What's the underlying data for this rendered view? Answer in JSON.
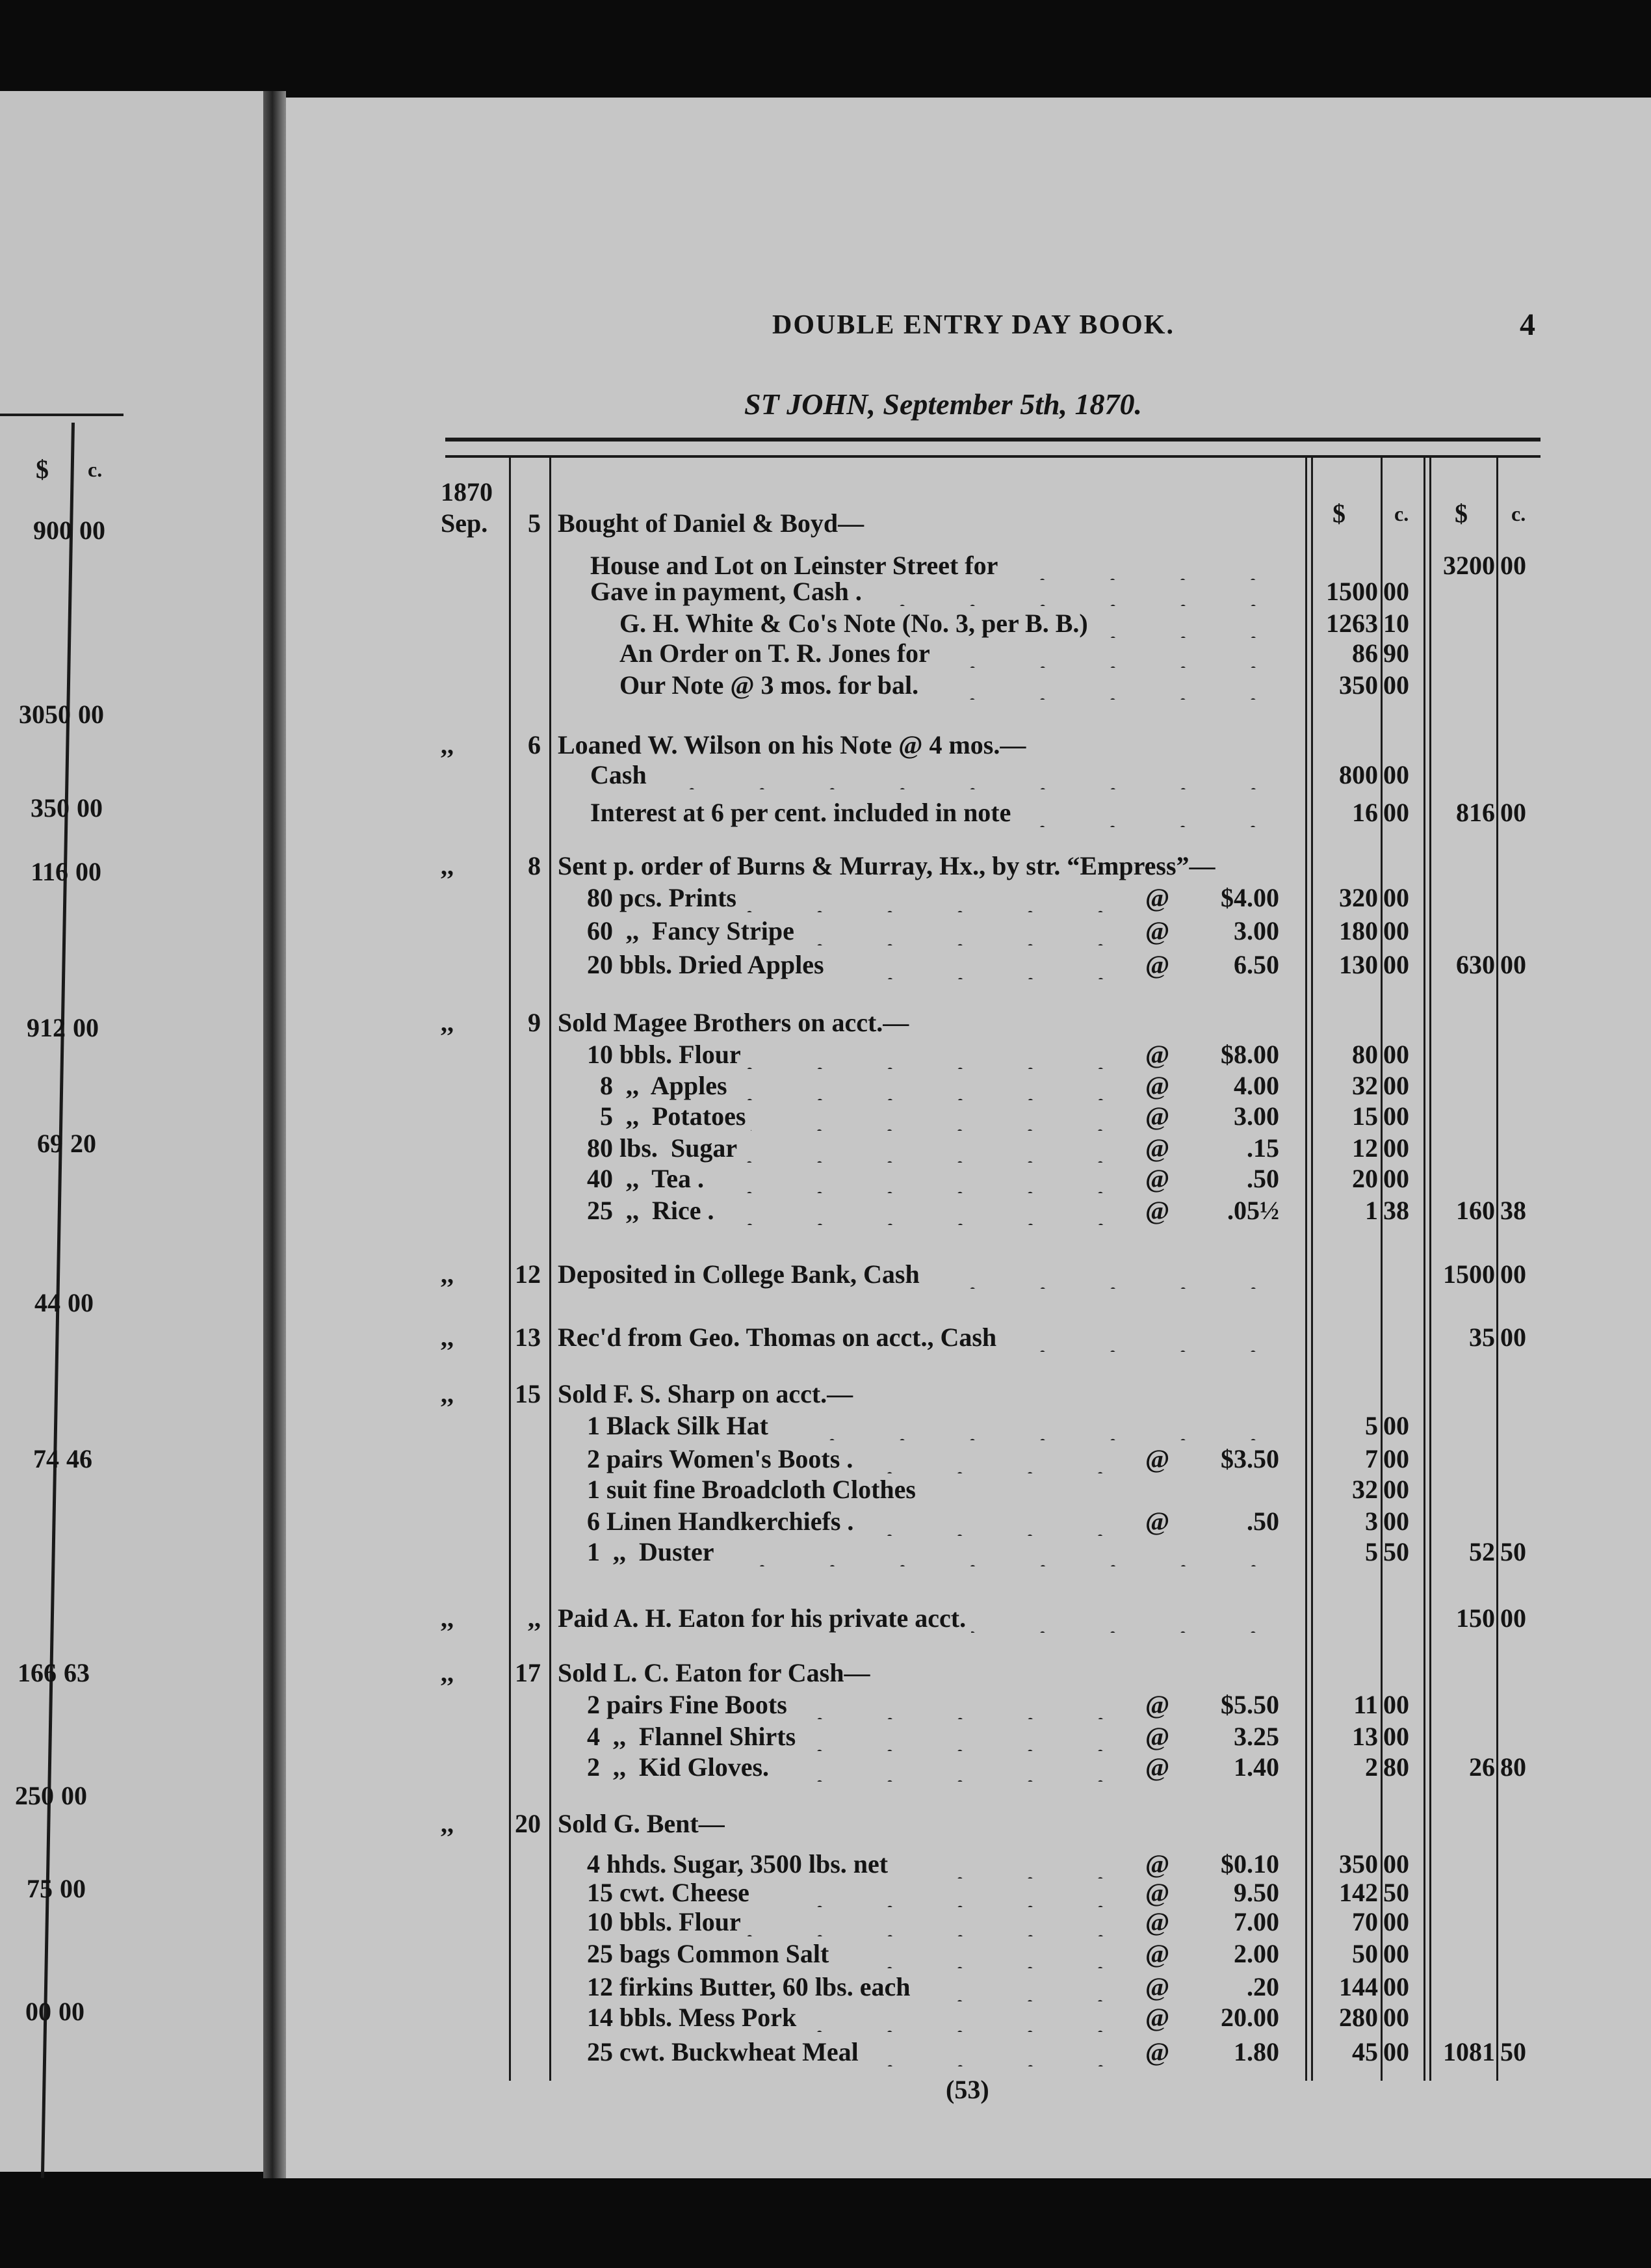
{
  "header": {
    "title": "DOUBLE ENTRY DAY BOOK.",
    "page_number": "4",
    "dateline": "ST JOHN, September 5th, 1870.",
    "folio": "(53)"
  },
  "table_header": {
    "year": "1870",
    "dollar1": "$",
    "cents1": "c.",
    "dollar2": "$",
    "cents2": "c."
  },
  "left_page": {
    "dollar": "$",
    "cents": "c.",
    "amounts": [
      {
        "d": "900",
        "c": "00"
      },
      {
        "d": "3050",
        "c": "00"
      },
      {
        "d": "350",
        "c": "00"
      },
      {
        "d": "116",
        "c": "00"
      },
      {
        "d": "912",
        "c": "00"
      },
      {
        "d": "69",
        "c": "20"
      },
      {
        "d": "44",
        "c": "00"
      },
      {
        "d": "74",
        "c": "46"
      },
      {
        "d": "166",
        "c": "63"
      },
      {
        "d": "250",
        "c": "00"
      },
      {
        "d": "75",
        "c": "00"
      },
      {
        "d": "00",
        "c": "00"
      }
    ]
  },
  "entries": [
    {
      "month": "Sep.",
      "day": "5",
      "text": "Bought of Daniel & Boyd—"
    },
    {
      "text": "House and Lot on Leinster Street for",
      "amt2": "3200",
      "c2": "00"
    },
    {
      "text": "Gave in payment, Cash .",
      "amt1": "1500",
      "c1": "00"
    },
    {
      "text": "G. H. White & Co's Note (No. 3, per B. B.)",
      "amt1": "1263",
      "c1": "10"
    },
    {
      "text": "An Order on T. R. Jones for",
      "amt1": "86",
      "c1": "90"
    },
    {
      "text": "Our Note @ 3 mos. for bal.",
      "amt1": "350",
      "c1": "00"
    },
    {
      "month": ",,",
      "day": "6",
      "text": "Loaned W. Wilson on his Note @ 4 mos.—"
    },
    {
      "text": "Cash",
      "amt1": "800",
      "c1": "00"
    },
    {
      "text": "Interest at 6 per cent. included in note",
      "amt1": "16",
      "c1": "00",
      "amt2": "816",
      "c2": "00"
    },
    {
      "month": ",,",
      "day": "8",
      "text": "Sent p. order of Burns & Murray, Hx., by str. “Empress”—"
    },
    {
      "text": "80 pcs. Prints",
      "at": "@",
      "price": "$4.00",
      "amt1": "320",
      "c1": "00"
    },
    {
      "text": "60  ,,  Fancy Stripe",
      "at": "@",
      "price": "3.00",
      "amt1": "180",
      "c1": "00"
    },
    {
      "text": "20 bbls. Dried Apples",
      "at": "@",
      "price": "6.50",
      "amt1": "130",
      "c1": "00",
      "amt2": "630",
      "c2": "00"
    },
    {
      "month": ",,",
      "day": "9",
      "text": "Sold Magee Brothers on acct.—"
    },
    {
      "text": "10 bbls. Flour",
      "at": "@",
      "price": "$8.00",
      "amt1": "80",
      "c1": "00"
    },
    {
      "text": "  8  ,,  Apples",
      "at": "@",
      "price": "4.00",
      "amt1": "32",
      "c1": "00"
    },
    {
      "text": "  5  ,,  Potatoes",
      "at": "@",
      "price": "3.00",
      "amt1": "15",
      "c1": "00"
    },
    {
      "text": "80 lbs.  Sugar",
      "at": "@",
      "price": ".15",
      "amt1": "12",
      "c1": "00"
    },
    {
      "text": "40  ,,  Tea .",
      "at": "@",
      "price": ".50",
      "amt1": "20",
      "c1": "00"
    },
    {
      "text": "25  ,,  Rice .",
      "at": "@",
      "price": ".05½",
      "amt1": "1",
      "c1": "38",
      "amt2": "160",
      "c2": "38"
    },
    {
      "month": ",,",
      "day": "12",
      "text": "Deposited in College Bank, Cash",
      "amt2": "1500",
      "c2": "00"
    },
    {
      "month": ",,",
      "day": "13",
      "text": "Rec'd from Geo. Thomas on acct., Cash",
      "amt2": "35",
      "c2": "00"
    },
    {
      "month": ",,",
      "day": "15",
      "text": "Sold F. S. Sharp on acct.—"
    },
    {
      "text": "1 Black Silk Hat",
      "amt1": "5",
      "c1": "00"
    },
    {
      "text": "2 pairs Women's Boots .",
      "at": "@",
      "price": "$3.50",
      "amt1": "7",
      "c1": "00"
    },
    {
      "text": "1 suit fine Broadcloth Clothes",
      "amt1": "32",
      "c1": "00"
    },
    {
      "text": "6 Linen Handkerchiefs .",
      "at": "@",
      "price": ".50",
      "amt1": "3",
      "c1": "00"
    },
    {
      "text": "1  ,,  Duster",
      "amt1": "5",
      "c1": "50",
      "amt2": "52",
      "c2": "50"
    },
    {
      "month": ",,",
      "day": ",,",
      "text": "Paid A. H. Eaton for his private acct.",
      "amt2": "150",
      "c2": "00"
    },
    {
      "month": ",,",
      "day": "17",
      "text": "Sold L. C. Eaton for Cash—"
    },
    {
      "text": "2 pairs Fine Boots",
      "at": "@",
      "price": "$5.50",
      "amt1": "11",
      "c1": "00"
    },
    {
      "text": "4  ,,  Flannel Shirts",
      "at": "@",
      "price": "3.25",
      "amt1": "13",
      "c1": "00"
    },
    {
      "text": "2  ,,  Kid Gloves.",
      "at": "@",
      "price": "1.40",
      "amt1": "2",
      "c1": "80",
      "amt2": "26",
      "c2": "80"
    },
    {
      "month": ",,",
      "day": "20",
      "text": "Sold G. Bent—"
    },
    {
      "text": "4 hhds. Sugar, 3500 lbs. net",
      "at": "@",
      "price": "$0.10",
      "amt1": "350",
      "c1": "00"
    },
    {
      "text": "15 cwt. Cheese",
      "at": "@",
      "price": "9.50",
      "amt1": "142",
      "c1": "50"
    },
    {
      "text": "10 bbls. Flour",
      "at": "@",
      "price": "7.00",
      "amt1": "70",
      "c1": "00"
    },
    {
      "text": "25 bags Common Salt",
      "at": "@",
      "price": "2.00",
      "amt1": "50",
      "c1": "00"
    },
    {
      "text": "12 firkins Butter, 60 lbs. each",
      "at": "@",
      "price": ".20",
      "amt1": "144",
      "c1": "00"
    },
    {
      "text": "14 bbls. Mess Pork",
      "at": "@",
      "price": "20.00",
      "amt1": "280",
      "c1": "00"
    },
    {
      "text": "25 cwt. Buckwheat Meal",
      "at": "@",
      "price": "1.80",
      "amt1": "45",
      "c1": "00",
      "amt2": "1081",
      "c2": "50"
    }
  ]
}
